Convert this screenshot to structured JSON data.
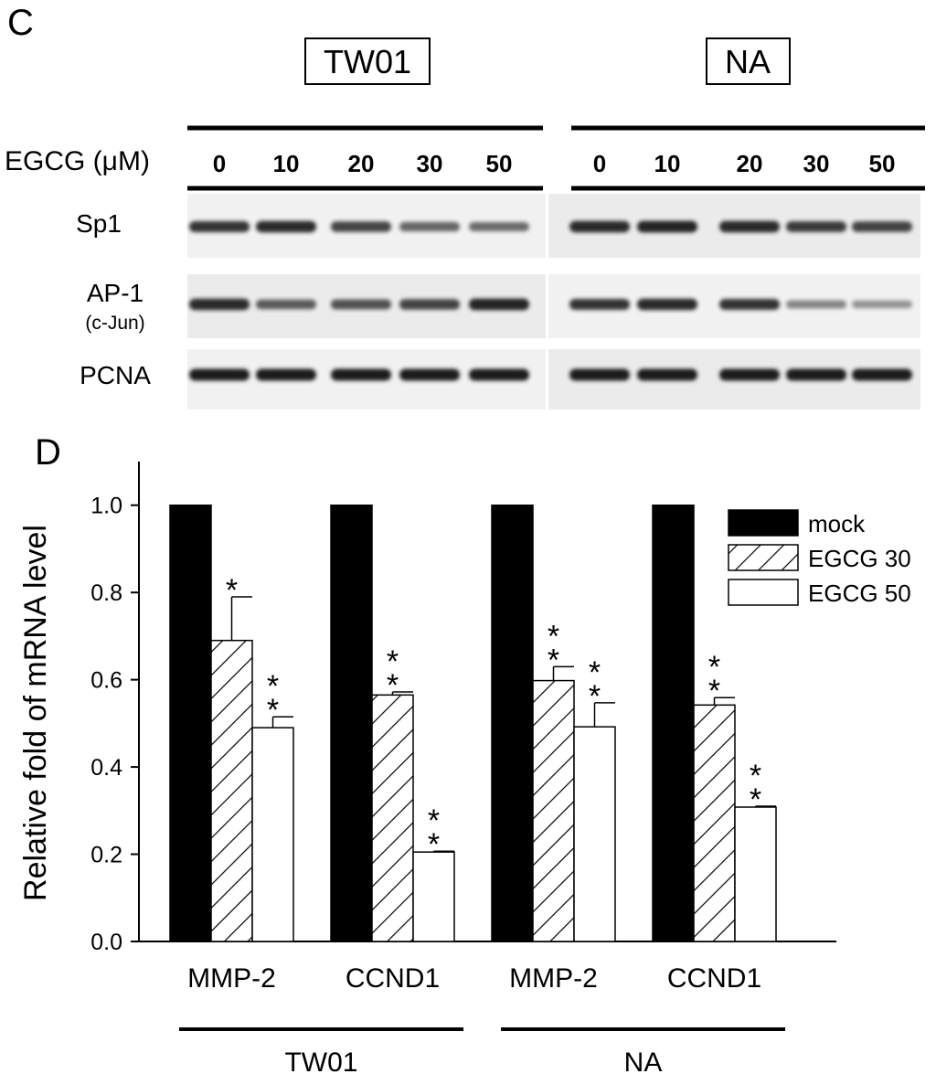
{
  "panel_c": {
    "letter": "C",
    "group_labels": [
      "TW01",
      "NA"
    ],
    "dose_label": "EGCG (μM)",
    "doses": [
      [
        "0",
        "10",
        "20",
        "30",
        "50"
      ],
      [
        "0",
        "10",
        "20",
        "30",
        "50"
      ]
    ],
    "blots": [
      {
        "label": "Sp1",
        "sublabel": "",
        "intensity": [
          [
            0.85,
            0.9,
            0.75,
            0.55,
            0.5
          ],
          [
            0.9,
            0.95,
            0.9,
            0.8,
            0.75
          ]
        ]
      },
      {
        "label": "AP-1",
        "sublabel": "(c-Jun)",
        "intensity": [
          [
            0.9,
            0.6,
            0.65,
            0.75,
            0.95
          ],
          [
            0.85,
            0.9,
            0.85,
            0.35,
            0.25
          ]
        ]
      },
      {
        "label": "PCNA",
        "sublabel": "",
        "intensity": [
          [
            1.0,
            1.0,
            1.0,
            1.0,
            1.0
          ],
          [
            1.0,
            1.0,
            1.0,
            1.0,
            1.0
          ]
        ]
      }
    ],
    "band_color": "#1c1c1c",
    "membrane_colors": [
      "#f1f1f1",
      "#ebebeb"
    ]
  },
  "chart_data": {
    "type": "bar",
    "panel_letter": "D",
    "title": "",
    "xlabel": "",
    "ylabel": "Relative fold of mRNA level",
    "ylim": [
      0,
      1.1
    ],
    "yticks": [
      "0.0",
      "0.2",
      "0.4",
      "0.6",
      "0.8",
      "1.0"
    ],
    "categories": [
      "MMP-2",
      "CCND1",
      "MMP-2",
      "CCND1"
    ],
    "groups": [
      {
        "label": "TW01",
        "span": [
          0,
          1
        ]
      },
      {
        "label": "NA",
        "span": [
          2,
          3
        ]
      }
    ],
    "series": [
      {
        "name": "mock",
        "fill": "solid",
        "color": "#000000",
        "values": [
          1.0,
          1.0,
          1.0,
          1.0
        ],
        "errors": [
          0,
          0,
          0,
          0
        ],
        "sig": [
          "",
          "",
          "",
          ""
        ]
      },
      {
        "name": "EGCG 30",
        "fill": "hatch",
        "color": "#000000",
        "values": [
          0.69,
          0.565,
          0.598,
          0.542
        ],
        "errors": [
          0.1,
          0.007,
          0.032,
          0.017
        ],
        "sig": [
          "*",
          "**",
          "**",
          "**"
        ]
      },
      {
        "name": "EGCG 50",
        "fill": "open",
        "color": "#000000",
        "values": [
          0.49,
          0.205,
          0.492,
          0.308
        ],
        "errors": [
          0.025,
          0.002,
          0.055,
          0.002
        ],
        "sig": [
          "**",
          "**",
          "**",
          "**"
        ]
      }
    ],
    "legend": "top-right",
    "grid": false
  }
}
